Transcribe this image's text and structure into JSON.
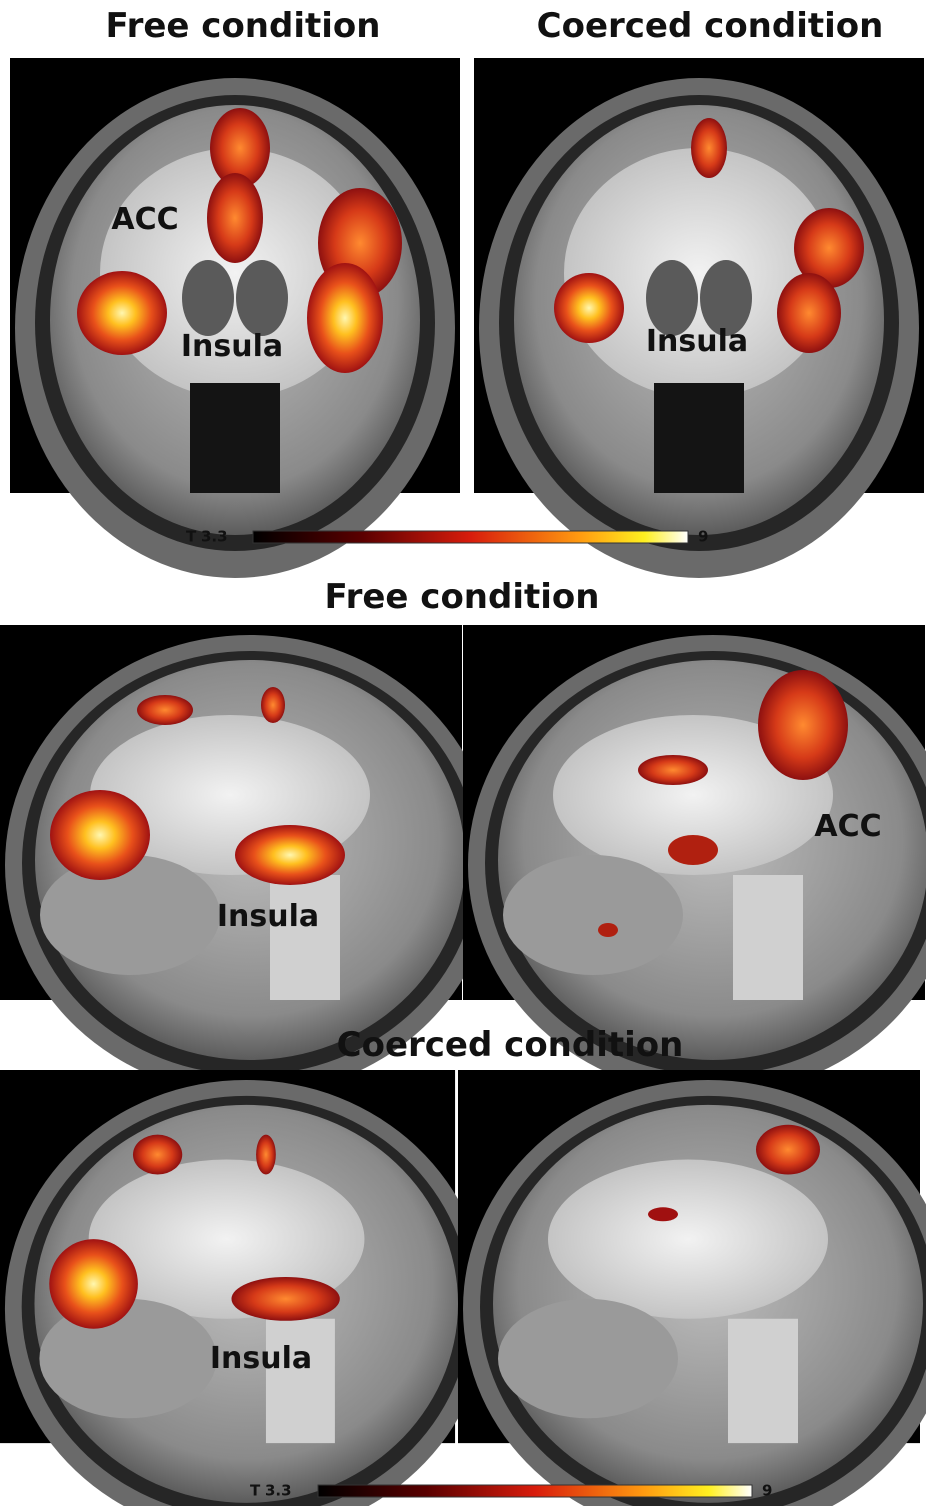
{
  "sections": [
    {
      "titles": [
        "Free condition",
        "Coerced condition"
      ],
      "labels": [
        "ACC",
        "Insula",
        "Insula"
      ],
      "colorbar": {
        "stat": "T",
        "min": 3.3,
        "max": 9
      }
    },
    {
      "titles": [
        "Free condition"
      ],
      "labels": [
        "Insula",
        "ACC"
      ]
    },
    {
      "titles": [
        "Coerced condition"
      ],
      "labels": [
        "Insula"
      ],
      "colorbar": {
        "stat": "T",
        "min": 3.3,
        "max": 9
      }
    }
  ]
}
